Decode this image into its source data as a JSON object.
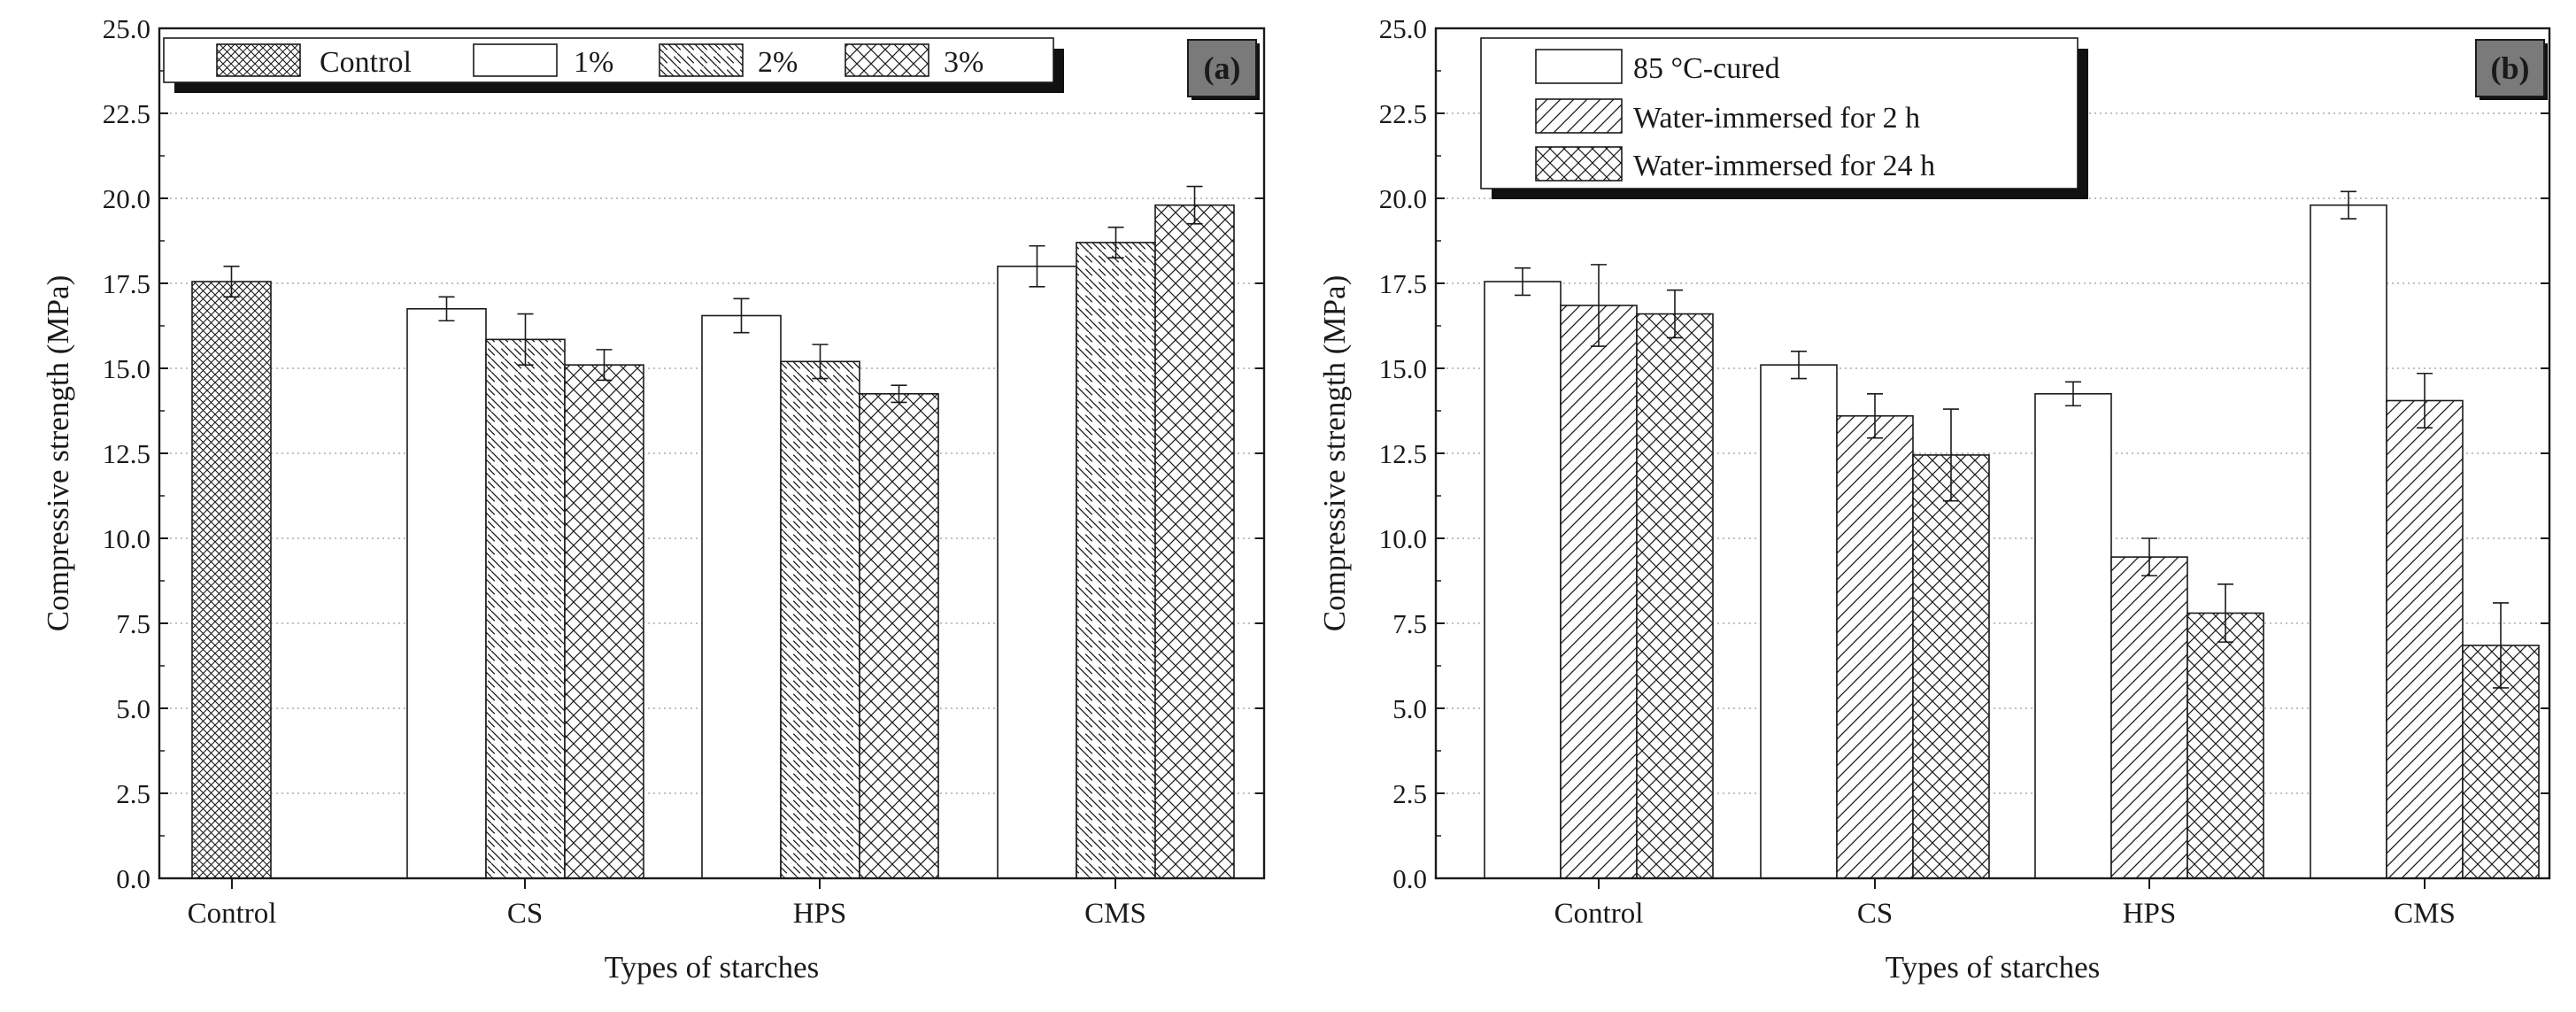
{
  "chart_data": [
    {
      "type": "bar",
      "panel_label": "(a)",
      "categories": [
        "Control",
        "CS",
        "HPS",
        "CMS"
      ],
      "series": [
        {
          "name": "Control",
          "pattern": "crosshatch-dense",
          "values": [
            17.55,
            null,
            null,
            null
          ],
          "errors": [
            0.45,
            null,
            null,
            null
          ]
        },
        {
          "name": "1%",
          "pattern": "none",
          "values": [
            null,
            16.75,
            16.55,
            18.0
          ],
          "errors": [
            null,
            0.35,
            0.5,
            0.6
          ]
        },
        {
          "name": "2%",
          "pattern": "diagonal-back",
          "values": [
            null,
            15.85,
            15.2,
            18.7
          ],
          "errors": [
            null,
            0.75,
            0.5,
            0.45
          ]
        },
        {
          "name": "3%",
          "pattern": "crosshatch",
          "values": [
            null,
            15.1,
            14.25,
            19.8
          ],
          "errors": [
            null,
            0.45,
            0.25,
            0.55
          ]
        }
      ],
      "xlabel": "Types of starches",
      "ylabel": "Compressive strength (MPa)",
      "ylim": [
        0,
        25
      ],
      "yticks": [
        "0.0",
        "2.5",
        "5.0",
        "7.5",
        "10.0",
        "12.5",
        "15.0",
        "17.5",
        "20.0",
        "22.5",
        "25.0"
      ],
      "grid": true,
      "legend_position": "top",
      "legend_layout": "row"
    },
    {
      "type": "bar",
      "panel_label": "(b)",
      "categories": [
        "Control",
        "CS",
        "HPS",
        "CMS"
      ],
      "series": [
        {
          "name": "85 °C-cured",
          "pattern": "none",
          "values": [
            17.55,
            15.1,
            14.25,
            19.8
          ],
          "errors": [
            0.4,
            0.4,
            0.35,
            0.4
          ]
        },
        {
          "name": "Water-immersed for 2 h",
          "pattern": "diagonal-forward",
          "values": [
            16.85,
            13.6,
            9.45,
            14.05
          ],
          "errors": [
            1.2,
            0.65,
            0.55,
            0.8
          ]
        },
        {
          "name": "Water-immersed for 24 h",
          "pattern": "crosshatch",
          "values": [
            16.6,
            12.45,
            7.8,
            6.85
          ],
          "errors": [
            0.7,
            1.35,
            0.85,
            1.25
          ]
        }
      ],
      "xlabel": "Types of starches",
      "ylabel": "Compressive strength (MPa)",
      "ylim": [
        0,
        25
      ],
      "yticks": [
        "0.0",
        "2.5",
        "5.0",
        "7.5",
        "10.0",
        "12.5",
        "15.0",
        "17.5",
        "20.0",
        "22.5",
        "25.0"
      ],
      "grid": true,
      "legend_position": "top-left",
      "legend_layout": "column"
    }
  ],
  "colors": {
    "ink": "#1a1a1a",
    "grid": "#9a9a9a",
    "bar_fill": "#ffffff",
    "label_box": "#7a7a7a",
    "shadow": "#111111"
  }
}
